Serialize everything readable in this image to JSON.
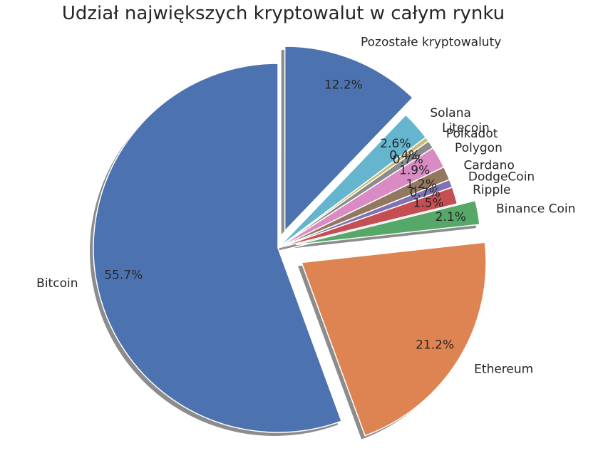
{
  "chart_data": {
    "type": "pie",
    "title": "Udział największych kryptowalut w całym rynku",
    "start_angle_deg": 90,
    "direction": "counterclockwise",
    "shadow": true,
    "slices": [
      {
        "label": "Bitcoin",
        "value": 55.7,
        "pct_label": "55.7%",
        "color": "#4c72b0",
        "explode": 0.0
      },
      {
        "label": "Ethereum",
        "value": 21.2,
        "pct_label": "21.2%",
        "color": "#dd8452",
        "explode": 0.15
      },
      {
        "label": "Binance Coin",
        "value": 2.1,
        "pct_label": "2.1%",
        "color": "#55a868",
        "explode": 0.1
      },
      {
        "label": "Ripple",
        "value": 1.5,
        "pct_label": "1.5%",
        "color": "#c44e52",
        "explode": 0.0
      },
      {
        "label": "DodgeCoin",
        "value": 0.7,
        "pct_label": "0.7%",
        "color": "#8172b3",
        "explode": 0.0
      },
      {
        "label": "Cardano",
        "value": 1.2,
        "pct_label": "1.2%",
        "color": "#937860",
        "explode": 0.0
      },
      {
        "label": "Polygon",
        "value": 1.9,
        "pct_label": "1.9%",
        "color": "#da8bc3",
        "explode": 0.0
      },
      {
        "label": "Polkadot",
        "value": 0.7,
        "pct_label": "0.7%",
        "color": "#8c8c8c",
        "explode": 0.0
      },
      {
        "label": "Litecoin",
        "value": 0.4,
        "pct_label": "0.4%",
        "color": "#ccb974",
        "explode": 0.0
      },
      {
        "label": "Solana",
        "value": 2.6,
        "pct_label": "2.6%",
        "color": "#64b5cd",
        "explode": 0.0
      },
      {
        "label": "Pozostałe kryptowaluty",
        "value": 12.2,
        "pct_label": "12.2%",
        "color": "#4c72b0",
        "explode": 0.1
      }
    ]
  }
}
